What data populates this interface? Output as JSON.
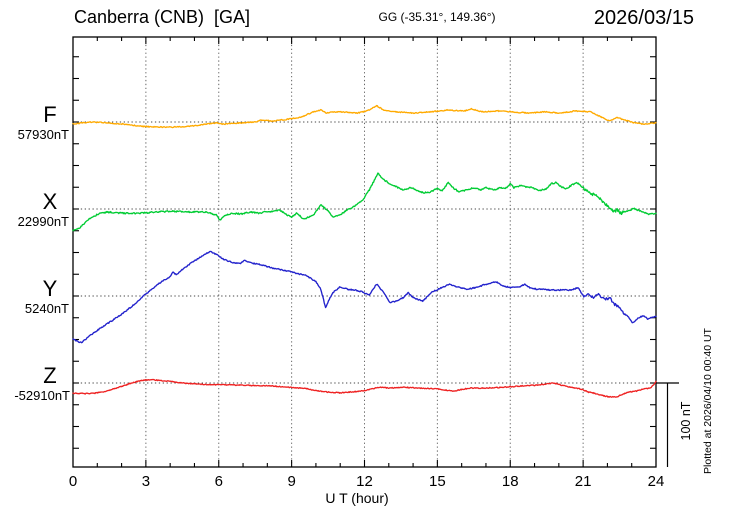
{
  "header": {
    "station_title": "Canberra (CNB)  [GA]",
    "gg_coords": "GG (-35.31°, 149.36°)",
    "date": "2026/03/15"
  },
  "axis": {
    "x_label": "U T (hour)",
    "hour_ticks": [
      0,
      3,
      6,
      9,
      12,
      15,
      18,
      21,
      24
    ],
    "grid_hours": [
      3,
      6,
      9,
      12,
      15,
      18,
      21
    ],
    "x_range": [
      0,
      24
    ]
  },
  "scale_bar": {
    "label": "100 nT",
    "nT": 100
  },
  "footer_note": "Plotted at 2026/04/10 00:40 UT",
  "chart_data": {
    "type": "line",
    "title": "Canberra (CNB) [GA] magnetogram 2026/03/15",
    "xlabel": "U T (hour)",
    "x_range": [
      0,
      24
    ],
    "y_unit": "nT deviation from channel base value",
    "scale_note": "100 nT vertical scale bar",
    "legend_position": "left",
    "grid": "dotted 3-hour vertical lines and per-channel dotted baselines",
    "series": [
      {
        "name": "F",
        "base_value_label": "57930nT",
        "base_value_nT": 57930,
        "color": "#FFAA00",
        "points": [
          [
            0,
            -2.5
          ],
          [
            0.4,
            -1
          ],
          [
            0.8,
            0
          ],
          [
            1.4,
            -1
          ],
          [
            2.1,
            -2.5
          ],
          [
            2.8,
            -5
          ],
          [
            3.4,
            -6
          ],
          [
            4.1,
            -6
          ],
          [
            4.8,
            -5
          ],
          [
            5.5,
            -2.5
          ],
          [
            5.9,
            -1
          ],
          [
            6.2,
            -2.5
          ],
          [
            6.9,
            -1
          ],
          [
            7.5,
            0
          ],
          [
            7.8,
            2.5
          ],
          [
            8.2,
            1
          ],
          [
            8.9,
            3.5
          ],
          [
            9.4,
            6
          ],
          [
            9.9,
            12
          ],
          [
            10.2,
            14
          ],
          [
            10.45,
            10.5
          ],
          [
            10.7,
            12
          ],
          [
            11,
            12
          ],
          [
            11.7,
            10.5
          ],
          [
            12.1,
            13
          ],
          [
            12.5,
            19
          ],
          [
            12.8,
            14
          ],
          [
            13.3,
            12
          ],
          [
            14,
            10.5
          ],
          [
            14.7,
            12
          ],
          [
            15.4,
            14
          ],
          [
            16.1,
            13
          ],
          [
            16.4,
            15.5
          ],
          [
            16.8,
            12
          ],
          [
            17.5,
            13
          ],
          [
            18,
            12
          ],
          [
            18.8,
            10.5
          ],
          [
            19.4,
            12
          ],
          [
            20,
            10.5
          ],
          [
            20.7,
            13
          ],
          [
            21.3,
            12
          ],
          [
            21.8,
            5
          ],
          [
            22.1,
            1
          ],
          [
            22.4,
            5
          ],
          [
            22.7,
            2.5
          ],
          [
            23.1,
            -1
          ],
          [
            23.5,
            -2.5
          ],
          [
            24,
            -1
          ]
        ]
      },
      {
        "name": "X",
        "base_value_label": "22990nT",
        "base_value_nT": 22990,
        "color": "#00CC33",
        "points": [
          [
            0,
            -25
          ],
          [
            0.3,
            -21.5
          ],
          [
            0.7,
            -11
          ],
          [
            1.1,
            -5
          ],
          [
            1.4,
            -3.5
          ],
          [
            2.1,
            -5
          ],
          [
            2.8,
            -5
          ],
          [
            3.4,
            -3.5
          ],
          [
            4.1,
            -2.5
          ],
          [
            4.8,
            -3.5
          ],
          [
            5.5,
            -3.5
          ],
          [
            5.9,
            -7
          ],
          [
            6.05,
            -13
          ],
          [
            6.3,
            -7
          ],
          [
            6.6,
            -5
          ],
          [
            6.9,
            -6
          ],
          [
            7.3,
            -3.5
          ],
          [
            7.7,
            -5
          ],
          [
            7.95,
            -2.5
          ],
          [
            8.2,
            -3.5
          ],
          [
            8.5,
            -1
          ],
          [
            8.8,
            -7
          ],
          [
            9,
            -9.5
          ],
          [
            9.2,
            -5
          ],
          [
            9.5,
            -12
          ],
          [
            9.9,
            -7
          ],
          [
            10.2,
            5
          ],
          [
            10.45,
            -1
          ],
          [
            10.7,
            -9.5
          ],
          [
            11,
            -7
          ],
          [
            11.3,
            -1
          ],
          [
            11.6,
            3.5
          ],
          [
            11.9,
            9.5
          ],
          [
            12.2,
            22.5
          ],
          [
            12.55,
            42
          ],
          [
            12.8,
            34.5
          ],
          [
            13.1,
            28.5
          ],
          [
            13.6,
            22.5
          ],
          [
            13.9,
            25
          ],
          [
            14.2,
            21.5
          ],
          [
            14.45,
            19
          ],
          [
            14.7,
            20
          ],
          [
            15,
            24
          ],
          [
            15.2,
            21.5
          ],
          [
            15.45,
            31
          ],
          [
            15.65,
            25
          ],
          [
            15.9,
            20
          ],
          [
            16.2,
            22.5
          ],
          [
            16.5,
            25
          ],
          [
            16.75,
            22.5
          ],
          [
            17,
            25
          ],
          [
            17.3,
            22.5
          ],
          [
            17.6,
            25
          ],
          [
            17.8,
            24
          ],
          [
            18,
            30
          ],
          [
            18.15,
            25
          ],
          [
            18.4,
            27.5
          ],
          [
            18.65,
            26
          ],
          [
            18.9,
            25
          ],
          [
            19.2,
            21.5
          ],
          [
            19.5,
            24
          ],
          [
            19.7,
            30
          ],
          [
            19.9,
            31
          ],
          [
            20.1,
            26
          ],
          [
            20.3,
            24
          ],
          [
            20.55,
            28.5
          ],
          [
            20.75,
            31
          ],
          [
            20.95,
            26
          ],
          [
            21.2,
            20
          ],
          [
            21.45,
            16.5
          ],
          [
            21.65,
            13
          ],
          [
            21.85,
            7
          ],
          [
            22.05,
            2.5
          ],
          [
            22.25,
            -3.5
          ],
          [
            22.4,
            -1
          ],
          [
            22.55,
            -5
          ],
          [
            22.7,
            -3.5
          ],
          [
            22.9,
            -2.5
          ],
          [
            23.05,
            1
          ],
          [
            23.2,
            -1
          ],
          [
            23.45,
            -3.5
          ],
          [
            23.7,
            -6
          ],
          [
            24,
            -5
          ]
        ]
      },
      {
        "name": "Y",
        "base_value_label": "5240nT",
        "base_value_nT": 5240,
        "color": "#2222CC",
        "points": [
          [
            0,
            -51
          ],
          [
            0.35,
            -55
          ],
          [
            0.7,
            -46.5
          ],
          [
            1,
            -40.5
          ],
          [
            1.5,
            -31
          ],
          [
            2,
            -21.5
          ],
          [
            2.5,
            -10.5
          ],
          [
            2.9,
            0
          ],
          [
            3.3,
            9.5
          ],
          [
            3.7,
            18
          ],
          [
            4,
            22.5
          ],
          [
            4.1,
            28.5
          ],
          [
            4.25,
            25
          ],
          [
            4.6,
            33.5
          ],
          [
            5,
            41.5
          ],
          [
            5.3,
            46.5
          ],
          [
            5.65,
            52.5
          ],
          [
            5.9,
            49
          ],
          [
            6.2,
            43
          ],
          [
            6.5,
            40
          ],
          [
            6.9,
            38
          ],
          [
            7.05,
            42
          ],
          [
            7.3,
            39
          ],
          [
            7.7,
            37
          ],
          [
            8.2,
            33
          ],
          [
            8.9,
            29
          ],
          [
            9.3,
            26
          ],
          [
            9.6,
            24
          ],
          [
            10,
            17
          ],
          [
            10.2,
            8
          ],
          [
            10.4,
            -14
          ],
          [
            10.55,
            -4
          ],
          [
            10.7,
            4
          ],
          [
            11,
            11
          ],
          [
            11.3,
            8
          ],
          [
            11.6,
            7
          ],
          [
            11.9,
            5
          ],
          [
            12.2,
            1
          ],
          [
            12.5,
            14
          ],
          [
            12.8,
            4
          ],
          [
            13.05,
            -8
          ],
          [
            13.3,
            -6
          ],
          [
            13.6,
            -2
          ],
          [
            13.8,
            4
          ],
          [
            14,
            -2
          ],
          [
            14.4,
            -6
          ],
          [
            14.8,
            5
          ],
          [
            15.2,
            10
          ],
          [
            15.5,
            14
          ],
          [
            15.8,
            11
          ],
          [
            16.2,
            8
          ],
          [
            16.6,
            10
          ],
          [
            16.9,
            13
          ],
          [
            17.4,
            17
          ],
          [
            17.7,
            12
          ],
          [
            18,
            10
          ],
          [
            18.4,
            11
          ],
          [
            18.6,
            14
          ],
          [
            18.8,
            10
          ],
          [
            19.1,
            8
          ],
          [
            19.8,
            7
          ],
          [
            20.5,
            7
          ],
          [
            20.8,
            10
          ],
          [
            21,
            0
          ],
          [
            21.2,
            2
          ],
          [
            21.4,
            -2
          ],
          [
            21.6,
            2
          ],
          [
            21.9,
            -4
          ],
          [
            22.1,
            -2
          ],
          [
            22.3,
            -10
          ],
          [
            22.45,
            -12
          ],
          [
            22.6,
            -18
          ],
          [
            22.9,
            -26
          ],
          [
            23.05,
            -32
          ],
          [
            23.25,
            -26
          ],
          [
            23.5,
            -23
          ],
          [
            23.65,
            -27
          ],
          [
            23.8,
            -25
          ],
          [
            24,
            -24
          ]
        ]
      },
      {
        "name": "Z",
        "base_value_label": "-52910nT",
        "base_value_nT": -52910,
        "color": "#EE2222",
        "points": [
          [
            0,
            -12
          ],
          [
            0.5,
            -12.5
          ],
          [
            0.9,
            -12
          ],
          [
            1.4,
            -9.5
          ],
          [
            1.9,
            -5
          ],
          [
            2.4,
            0
          ],
          [
            2.8,
            3
          ],
          [
            3.2,
            4
          ],
          [
            3.6,
            3
          ],
          [
            4,
            2
          ],
          [
            4.5,
            0
          ],
          [
            5,
            -1
          ],
          [
            5.6,
            -2
          ],
          [
            6.2,
            -2
          ],
          [
            6.9,
            -2.5
          ],
          [
            7.5,
            -3
          ],
          [
            8.2,
            -3.5
          ],
          [
            8.9,
            -5
          ],
          [
            9.6,
            -6.5
          ],
          [
            10,
            -9
          ],
          [
            10.4,
            -10.5
          ],
          [
            11,
            -11.5
          ],
          [
            11.5,
            -10.5
          ],
          [
            12,
            -9
          ],
          [
            12.6,
            -5
          ],
          [
            13.05,
            -6
          ],
          [
            13.6,
            -5
          ],
          [
            14.3,
            -6
          ],
          [
            15,
            -7
          ],
          [
            15.65,
            -9.5
          ],
          [
            16.1,
            -7
          ],
          [
            16.4,
            -6
          ],
          [
            17,
            -6
          ],
          [
            17.7,
            -5
          ],
          [
            18.4,
            -3.5
          ],
          [
            19.1,
            -2.5
          ],
          [
            19.5,
            -1
          ],
          [
            19.8,
            0
          ],
          [
            20.1,
            -2.5
          ],
          [
            20.5,
            -5
          ],
          [
            20.9,
            -7
          ],
          [
            21.2,
            -10.5
          ],
          [
            21.6,
            -13
          ],
          [
            21.9,
            -15.5
          ],
          [
            22.1,
            -16.5
          ],
          [
            22.4,
            -16.5
          ],
          [
            22.6,
            -13.5
          ],
          [
            22.9,
            -10.5
          ],
          [
            23.2,
            -9.5
          ],
          [
            23.5,
            -7
          ],
          [
            23.75,
            -6
          ],
          [
            23.9,
            -2.5
          ],
          [
            24,
            2
          ]
        ]
      }
    ]
  }
}
